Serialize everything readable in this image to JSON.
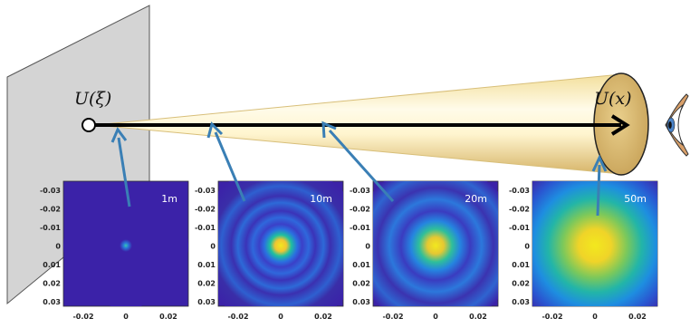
{
  "labels": {
    "source": "U(ξ)",
    "observer": "U(x)"
  },
  "panels": [
    {
      "distance": "1m",
      "spot": 0.04
    },
    {
      "distance": "10m",
      "spot": 0.18
    },
    {
      "distance": "20m",
      "spot": 0.28
    },
    {
      "distance": "50m",
      "spot": 0.62
    }
  ],
  "axis": {
    "y_ticks": [
      "-0.03",
      "-0.02",
      "-0.01",
      "0",
      "0.01",
      "0.02",
      "0.03"
    ],
    "x_ticks": [
      "-0.02",
      "0",
      "0.02"
    ]
  },
  "colors": {
    "plane": "#d3d3d3",
    "beam_light": "#fbf3c8",
    "beam_dark": "#e0c27a",
    "disk": "#d7b66c",
    "pointer": "#3a7fb5",
    "heat_low": "#3b22a8",
    "heat_high": "#f2e81e"
  },
  "icons": [
    "eye-icon",
    "source-point-icon"
  ]
}
